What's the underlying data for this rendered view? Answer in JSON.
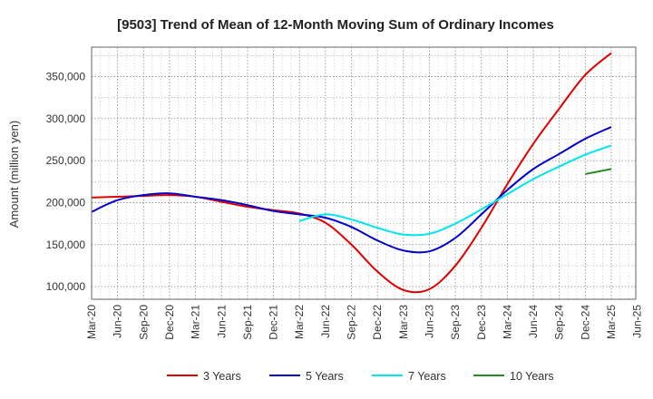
{
  "chart_data": {
    "type": "line",
    "title": "[9503]  Trend of Mean of 12-Month Moving Sum of Ordinary Incomes",
    "xlabel": "",
    "ylabel": "Amount (million yen)",
    "ylim": [
      85000,
      385000
    ],
    "yticks": [
      100000,
      150000,
      200000,
      250000,
      300000,
      350000
    ],
    "ytick_labels": [
      "100,000",
      "150,000",
      "200,000",
      "250,000",
      "300,000",
      "350,000"
    ],
    "x_tick_labels": [
      "Mar-20",
      "Jun-20",
      "Sep-20",
      "Dec-20",
      "Mar-21",
      "Jun-21",
      "Sep-21",
      "Dec-21",
      "Mar-22",
      "Jun-22",
      "Sep-22",
      "Dec-22",
      "Mar-23",
      "Jun-23",
      "Sep-23",
      "Dec-23",
      "Mar-24",
      "Jun-24",
      "Sep-24",
      "Dec-24",
      "Mar-25",
      "Jun-25"
    ],
    "grid": true,
    "legend_position": "bottom",
    "series": [
      {
        "name": "3 Years",
        "color": "#e00000",
        "start_index": 0,
        "values": [
          206000,
          207000,
          208000,
          209000,
          207000,
          201000,
          195000,
          191000,
          187000,
          176000,
          150000,
          118000,
          96000,
          97000,
          125000,
          170000,
          222000,
          270000,
          312000,
          352000,
          378000
        ]
      },
      {
        "name": "5 Years",
        "color": "#0000cc",
        "start_index": 0,
        "values": [
          189000,
          203000,
          209000,
          211000,
          207000,
          203000,
          197000,
          190000,
          186000,
          182000,
          171000,
          155000,
          143000,
          142000,
          158000,
          186000,
          215000,
          240000,
          258000,
          276000,
          290000
        ]
      },
      {
        "name": "7 Years",
        "color": "#00e5ee",
        "start_index": 8,
        "values": [
          178000,
          186000,
          180000,
          170000,
          162000,
          163000,
          175000,
          192000,
          210000,
          228000,
          243000,
          257000,
          268000
        ]
      },
      {
        "name": "10 Years",
        "color": "#228b22",
        "start_index": 19,
        "values": [
          234000,
          240000
        ]
      }
    ]
  }
}
